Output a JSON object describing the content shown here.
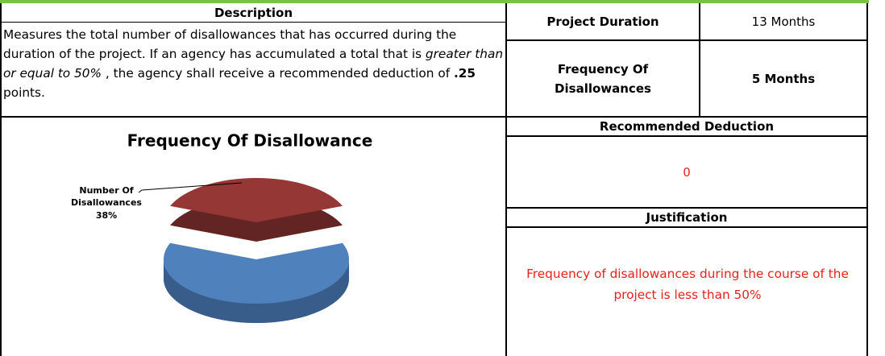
{
  "table": {
    "description": {
      "header": "Description",
      "text_before": "Measures the total number of disallowances that has occurred during the duration of the project. If an agency has accumulated a total that is ",
      "italic_text": "greater than or equal to 50%",
      "text_middle": " , the agency shall receive a recommended deduction of ",
      "bold_text": ".25",
      "text_after": " points."
    },
    "project_duration": {
      "label": "Project Duration",
      "value": "13 Months"
    },
    "frequency": {
      "label": "Frequency Of Disallowances",
      "value": "5 Months"
    },
    "recommended_deduction": {
      "header": "Recommended Deduction",
      "value": "0"
    },
    "justification": {
      "header": "Justification",
      "text": "Frequency of disallowances during the course of the project is less than 50%"
    }
  },
  "chart_data": {
    "type": "pie",
    "title": "Frequency Of Disallowance",
    "categories": [
      "Number Of Disallowances",
      null
    ],
    "values": [
      38,
      62
    ],
    "value_labels": [
      "38%",
      null
    ],
    "colors": [
      "#953735",
      "#4f81bd"
    ],
    "side_colors": [
      "#632523",
      "#385d8a"
    ]
  }
}
